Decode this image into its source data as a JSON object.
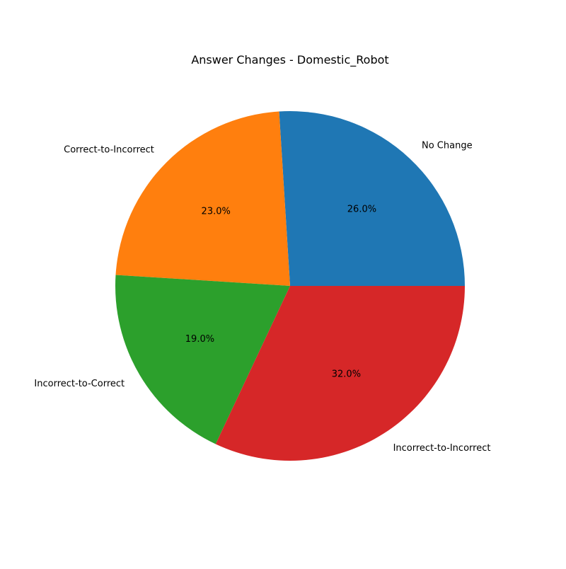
{
  "chart_data": {
    "type": "pie",
    "title": "Answer Changes - Domestic_Robot",
    "labels": [
      "No Change",
      "Correct-to-Incorrect",
      "Incorrect-to-Correct",
      "Incorrect-to-Incorrect"
    ],
    "values": [
      26.0,
      23.0,
      19.0,
      32.0
    ],
    "percent_labels": [
      "26.0%",
      "23.0%",
      "19.0%",
      "32.0%"
    ],
    "colors": [
      "#1f77b4",
      "#ff7f0e",
      "#2ca02c",
      "#d62728"
    ],
    "start_angle_deg": 0,
    "direction": "counterclockwise",
    "legend": "none"
  }
}
